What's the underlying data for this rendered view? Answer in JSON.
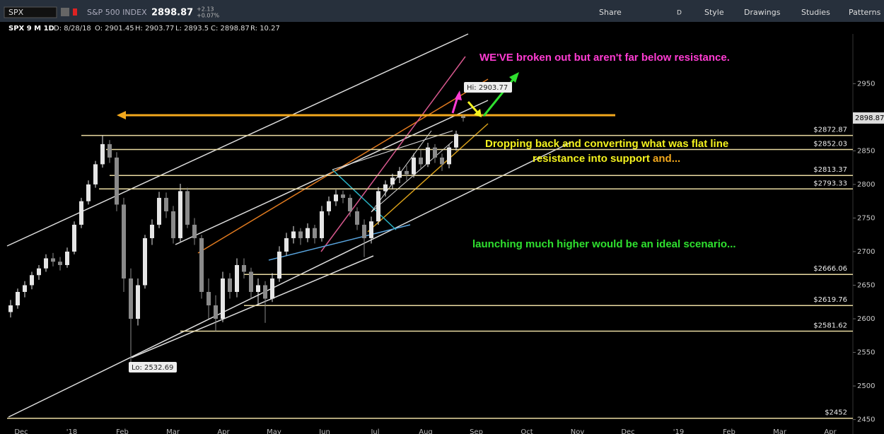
{
  "toolbar": {
    "symbol": "SPX",
    "name": "S&P 500 INDEX",
    "price": "2898.87",
    "change": "+2.13",
    "change_pct": "+0.07%",
    "buttons": [
      "Share",
      "D",
      "Style",
      "Drawings",
      "Studies",
      "Patterns"
    ]
  },
  "info": {
    "chart": "SPX 9 M 1D",
    "date": "D: 8/28/18",
    "open": "O: 2901.45",
    "high": "H: 2903.77",
    "low": "L: 2893.5",
    "close": "C: 2898.87",
    "range": "R: 10.27"
  },
  "chart_data": {
    "type": "candlestick",
    "annotations": {
      "breakout": "WE'VE broken out but aren't far below resistance.",
      "dropping1": "Dropping back and converting what was flat line",
      "dropping2": "resistance into support",
      "dropping3": " and...",
      "launching": "launching much higher would be an ideal scenario...",
      "hi": "Hi: 2903.77",
      "lo": "Lo: 2532.69"
    },
    "candles": [
      [
        2610,
        2628,
        2602,
        2620
      ],
      [
        2620,
        2645,
        2615,
        2640
      ],
      [
        2640,
        2656,
        2632,
        2650
      ],
      [
        2650,
        2670,
        2644,
        2665
      ],
      [
        2665,
        2680,
        2658,
        2675
      ],
      [
        2675,
        2696,
        2670,
        2690
      ],
      [
        2690,
        2698,
        2678,
        2685
      ],
      [
        2685,
        2692,
        2672,
        2680
      ],
      [
        2680,
        2706,
        2676,
        2700
      ],
      [
        2700,
        2745,
        2696,
        2740
      ],
      [
        2740,
        2780,
        2735,
        2775
      ],
      [
        2775,
        2806,
        2770,
        2800
      ],
      [
        2800,
        2835,
        2795,
        2830
      ],
      [
        2830,
        2872.87,
        2825,
        2860
      ],
      [
        2860,
        2866,
        2832,
        2840
      ],
      [
        2840,
        2848,
        2760,
        2770
      ],
      [
        2770,
        2780,
        2640,
        2660
      ],
      [
        2660,
        2675,
        2532.69,
        2600
      ],
      [
        2600,
        2660,
        2590,
        2650
      ],
      [
        2650,
        2725,
        2645,
        2720
      ],
      [
        2720,
        2748,
        2710,
        2740
      ],
      [
        2740,
        2789,
        2735,
        2780
      ],
      [
        2780,
        2788,
        2750,
        2760
      ],
      [
        2760,
        2768,
        2712,
        2720
      ],
      [
        2720,
        2801,
        2715,
        2790
      ],
      [
        2790,
        2795,
        2735,
        2740
      ],
      [
        2740,
        2750,
        2710,
        2720
      ],
      [
        2720,
        2725,
        2630,
        2640
      ],
      [
        2640,
        2660,
        2600,
        2620
      ],
      [
        2620,
        2635,
        2581.62,
        2600
      ],
      [
        2600,
        2670,
        2595,
        2660
      ],
      [
        2660,
        2668,
        2630,
        2640
      ],
      [
        2640,
        2690,
        2632,
        2680
      ],
      [
        2680,
        2690,
        2660,
        2670
      ],
      [
        2670,
        2676,
        2630,
        2640
      ],
      [
        2640,
        2660,
        2620,
        2650
      ],
      [
        2650,
        2656,
        2594,
        2630
      ],
      [
        2630,
        2668,
        2625,
        2660
      ],
      [
        2660,
        2708,
        2655,
        2700
      ],
      [
        2700,
        2728,
        2694,
        2720
      ],
      [
        2720,
        2738,
        2712,
        2730
      ],
      [
        2730,
        2735,
        2710,
        2720
      ],
      [
        2720,
        2742,
        2714,
        2735
      ],
      [
        2735,
        2740,
        2712,
        2720
      ],
      [
        2720,
        2768,
        2715,
        2760
      ],
      [
        2760,
        2782,
        2754,
        2775
      ],
      [
        2775,
        2792,
        2768,
        2785
      ],
      [
        2785,
        2791,
        2772,
        2780
      ],
      [
        2780,
        2785,
        2752,
        2760
      ],
      [
        2760,
        2766,
        2732,
        2740
      ],
      [
        2740,
        2748,
        2692,
        2720
      ],
      [
        2720,
        2752,
        2712,
        2745
      ],
      [
        2745,
        2796,
        2740,
        2790
      ],
      [
        2790,
        2806,
        2782,
        2800
      ],
      [
        2800,
        2816,
        2793,
        2810
      ],
      [
        2810,
        2826,
        2802,
        2820
      ],
      [
        2820,
        2828,
        2806,
        2815
      ],
      [
        2815,
        2846,
        2810,
        2840
      ],
      [
        2840,
        2852,
        2824,
        2830
      ],
      [
        2830,
        2862,
        2826,
        2855
      ],
      [
        2855,
        2860,
        2832,
        2840
      ],
      [
        2840,
        2846,
        2820,
        2830
      ],
      [
        2830,
        2860,
        2824,
        2855
      ],
      [
        2855,
        2880,
        2850,
        2875
      ],
      [
        2901.45,
        2903.77,
        2893.5,
        2898.87
      ]
    ],
    "up_color": "#e6e6e6",
    "down_color": "#8a8a8a",
    "levels": [
      2872.87,
      2852.03,
      2813.37,
      2793.33,
      2666.06,
      2619.76,
      2581.62,
      2452
    ],
    "level_labels": [
      "$2872.87",
      "$2852.03",
      "$2813.37",
      "$2793.33",
      "$2666.06",
      "$2619.76",
      "$2581.62",
      "$2452"
    ],
    "level_color": "#eadba2",
    "last_price": 2898.87,
    "ylim": [
      2438,
      3024
    ],
    "yticks": [
      2450,
      2500,
      2550,
      2600,
      2650,
      2700,
      2750,
      2800,
      2850,
      2900,
      2950
    ],
    "xtick_labels": [
      "Dec",
      "'18",
      "Feb",
      "Mar",
      "Apr",
      "May",
      "Jun",
      "Jul",
      "Aug",
      "Sep",
      "Oct",
      "Nov",
      "Dec",
      "'19",
      "Feb",
      "Mar",
      "Apr"
    ]
  }
}
